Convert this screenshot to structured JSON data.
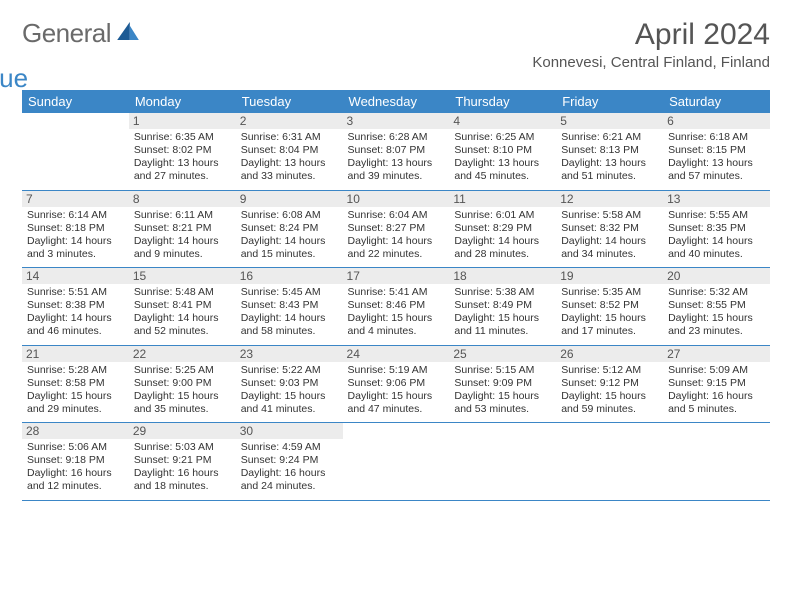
{
  "logo": {
    "word1": "General",
    "word2": "Blue"
  },
  "header": {
    "title": "April 2024",
    "location": "Konnevesi, Central Finland, Finland"
  },
  "colors": {
    "accent": "#3b86c6",
    "header_text": "#ffffff",
    "day_label_bg": "#ececec",
    "body_text": "#333333",
    "muted_text": "#555555",
    "logo_gray": "#6a6a6a",
    "background": "#ffffff"
  },
  "daysOfWeek": [
    "Sunday",
    "Monday",
    "Tuesday",
    "Wednesday",
    "Thursday",
    "Friday",
    "Saturday"
  ],
  "weeks": [
    [
      {
        "n": "",
        "sr": "",
        "ss": "",
        "dl": ""
      },
      {
        "n": "1",
        "sr": "Sunrise: 6:35 AM",
        "ss": "Sunset: 8:02 PM",
        "dl": "Daylight: 13 hours and 27 minutes."
      },
      {
        "n": "2",
        "sr": "Sunrise: 6:31 AM",
        "ss": "Sunset: 8:04 PM",
        "dl": "Daylight: 13 hours and 33 minutes."
      },
      {
        "n": "3",
        "sr": "Sunrise: 6:28 AM",
        "ss": "Sunset: 8:07 PM",
        "dl": "Daylight: 13 hours and 39 minutes."
      },
      {
        "n": "4",
        "sr": "Sunrise: 6:25 AM",
        "ss": "Sunset: 8:10 PM",
        "dl": "Daylight: 13 hours and 45 minutes."
      },
      {
        "n": "5",
        "sr": "Sunrise: 6:21 AM",
        "ss": "Sunset: 8:13 PM",
        "dl": "Daylight: 13 hours and 51 minutes."
      },
      {
        "n": "6",
        "sr": "Sunrise: 6:18 AM",
        "ss": "Sunset: 8:15 PM",
        "dl": "Daylight: 13 hours and 57 minutes."
      }
    ],
    [
      {
        "n": "7",
        "sr": "Sunrise: 6:14 AM",
        "ss": "Sunset: 8:18 PM",
        "dl": "Daylight: 14 hours and 3 minutes."
      },
      {
        "n": "8",
        "sr": "Sunrise: 6:11 AM",
        "ss": "Sunset: 8:21 PM",
        "dl": "Daylight: 14 hours and 9 minutes."
      },
      {
        "n": "9",
        "sr": "Sunrise: 6:08 AM",
        "ss": "Sunset: 8:24 PM",
        "dl": "Daylight: 14 hours and 15 minutes."
      },
      {
        "n": "10",
        "sr": "Sunrise: 6:04 AM",
        "ss": "Sunset: 8:27 PM",
        "dl": "Daylight: 14 hours and 22 minutes."
      },
      {
        "n": "11",
        "sr": "Sunrise: 6:01 AM",
        "ss": "Sunset: 8:29 PM",
        "dl": "Daylight: 14 hours and 28 minutes."
      },
      {
        "n": "12",
        "sr": "Sunrise: 5:58 AM",
        "ss": "Sunset: 8:32 PM",
        "dl": "Daylight: 14 hours and 34 minutes."
      },
      {
        "n": "13",
        "sr": "Sunrise: 5:55 AM",
        "ss": "Sunset: 8:35 PM",
        "dl": "Daylight: 14 hours and 40 minutes."
      }
    ],
    [
      {
        "n": "14",
        "sr": "Sunrise: 5:51 AM",
        "ss": "Sunset: 8:38 PM",
        "dl": "Daylight: 14 hours and 46 minutes."
      },
      {
        "n": "15",
        "sr": "Sunrise: 5:48 AM",
        "ss": "Sunset: 8:41 PM",
        "dl": "Daylight: 14 hours and 52 minutes."
      },
      {
        "n": "16",
        "sr": "Sunrise: 5:45 AM",
        "ss": "Sunset: 8:43 PM",
        "dl": "Daylight: 14 hours and 58 minutes."
      },
      {
        "n": "17",
        "sr": "Sunrise: 5:41 AM",
        "ss": "Sunset: 8:46 PM",
        "dl": "Daylight: 15 hours and 4 minutes."
      },
      {
        "n": "18",
        "sr": "Sunrise: 5:38 AM",
        "ss": "Sunset: 8:49 PM",
        "dl": "Daylight: 15 hours and 11 minutes."
      },
      {
        "n": "19",
        "sr": "Sunrise: 5:35 AM",
        "ss": "Sunset: 8:52 PM",
        "dl": "Daylight: 15 hours and 17 minutes."
      },
      {
        "n": "20",
        "sr": "Sunrise: 5:32 AM",
        "ss": "Sunset: 8:55 PM",
        "dl": "Daylight: 15 hours and 23 minutes."
      }
    ],
    [
      {
        "n": "21",
        "sr": "Sunrise: 5:28 AM",
        "ss": "Sunset: 8:58 PM",
        "dl": "Daylight: 15 hours and 29 minutes."
      },
      {
        "n": "22",
        "sr": "Sunrise: 5:25 AM",
        "ss": "Sunset: 9:00 PM",
        "dl": "Daylight: 15 hours and 35 minutes."
      },
      {
        "n": "23",
        "sr": "Sunrise: 5:22 AM",
        "ss": "Sunset: 9:03 PM",
        "dl": "Daylight: 15 hours and 41 minutes."
      },
      {
        "n": "24",
        "sr": "Sunrise: 5:19 AM",
        "ss": "Sunset: 9:06 PM",
        "dl": "Daylight: 15 hours and 47 minutes."
      },
      {
        "n": "25",
        "sr": "Sunrise: 5:15 AM",
        "ss": "Sunset: 9:09 PM",
        "dl": "Daylight: 15 hours and 53 minutes."
      },
      {
        "n": "26",
        "sr": "Sunrise: 5:12 AM",
        "ss": "Sunset: 9:12 PM",
        "dl": "Daylight: 15 hours and 59 minutes."
      },
      {
        "n": "27",
        "sr": "Sunrise: 5:09 AM",
        "ss": "Sunset: 9:15 PM",
        "dl": "Daylight: 16 hours and 5 minutes."
      }
    ],
    [
      {
        "n": "28",
        "sr": "Sunrise: 5:06 AM",
        "ss": "Sunset: 9:18 PM",
        "dl": "Daylight: 16 hours and 12 minutes."
      },
      {
        "n": "29",
        "sr": "Sunrise: 5:03 AM",
        "ss": "Sunset: 9:21 PM",
        "dl": "Daylight: 16 hours and 18 minutes."
      },
      {
        "n": "30",
        "sr": "Sunrise: 4:59 AM",
        "ss": "Sunset: 9:24 PM",
        "dl": "Daylight: 16 hours and 24 minutes."
      },
      {
        "n": "",
        "sr": "",
        "ss": "",
        "dl": ""
      },
      {
        "n": "",
        "sr": "",
        "ss": "",
        "dl": ""
      },
      {
        "n": "",
        "sr": "",
        "ss": "",
        "dl": ""
      },
      {
        "n": "",
        "sr": "",
        "ss": "",
        "dl": ""
      }
    ]
  ]
}
